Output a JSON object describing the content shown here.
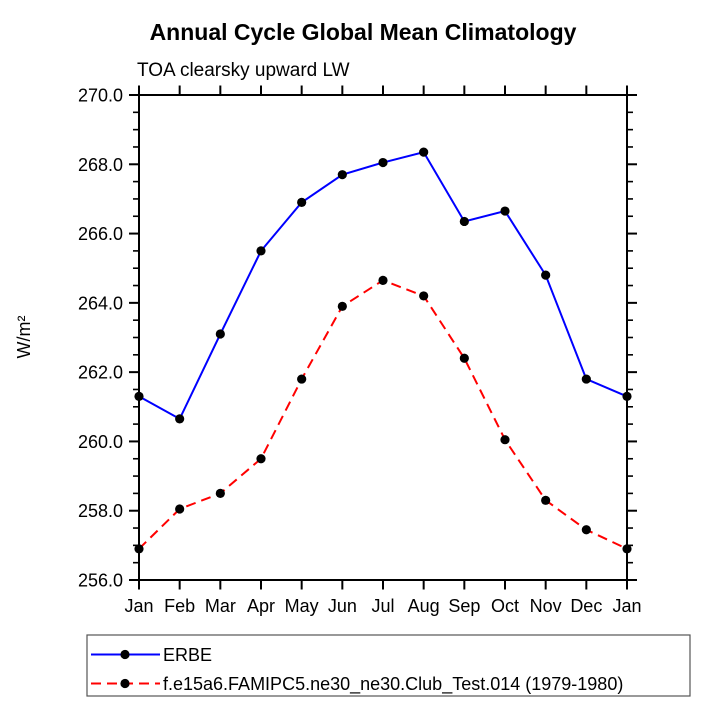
{
  "page": {
    "background": "#ffffff"
  },
  "chart_data": {
    "type": "line",
    "title": "Annual Cycle Global Mean Climatology",
    "subtitle": "TOA clearsky upward LW",
    "ylabel": "W/m²",
    "xlabel": "",
    "categories": [
      "Jan",
      "Feb",
      "Mar",
      "Apr",
      "May",
      "Jun",
      "Jul",
      "Aug",
      "Sep",
      "Oct",
      "Nov",
      "Dec",
      "Jan"
    ],
    "ylim": [
      256.0,
      270.0
    ],
    "ytick_major_step": 2.0,
    "ytick_minor_step": 0.5,
    "ytick_labels": [
      "256.0",
      "258.0",
      "260.0",
      "262.0",
      "264.0",
      "266.0",
      "268.0",
      "270.0"
    ],
    "grid": false,
    "legend_position": "bottom-left",
    "marker": {
      "shape": "circle",
      "color": "#000000",
      "radius": 4.6
    },
    "axis_color": "#000000",
    "series": [
      {
        "name": "ERBE",
        "color": "#0000ff",
        "style": "solid",
        "values": [
          261.3,
          260.65,
          263.1,
          265.5,
          266.9,
          267.7,
          268.05,
          268.35,
          266.35,
          266.65,
          264.8,
          261.8,
          261.3
        ]
      },
      {
        "name": "f.e15a6.FAMIPC5.ne30_ne30.Club_Test.014 (1979-1980)",
        "color": "#ff0000",
        "style": "dashed",
        "values": [
          256.9,
          258.05,
          258.5,
          259.5,
          261.8,
          263.9,
          264.65,
          264.2,
          262.4,
          260.05,
          258.3,
          257.45,
          256.9
        ]
      }
    ]
  }
}
